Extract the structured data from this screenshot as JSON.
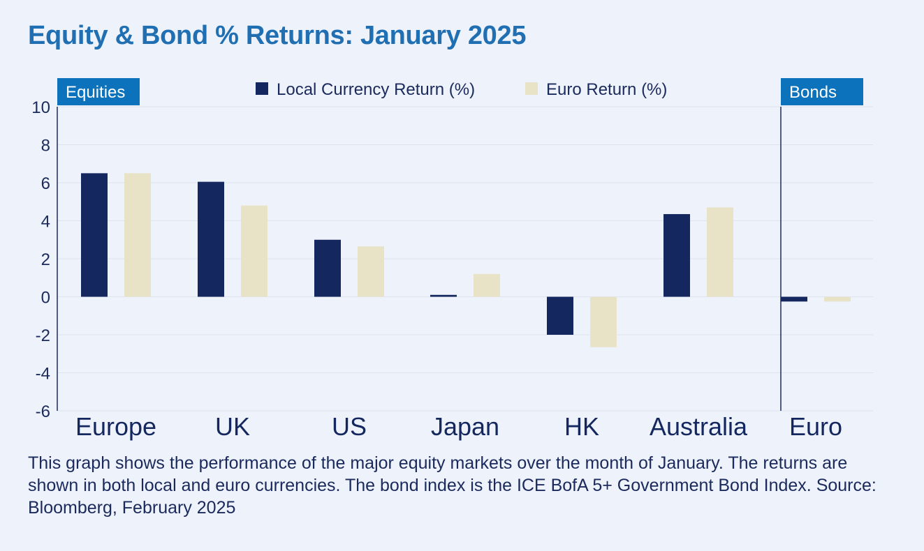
{
  "title": "Equity & Bond % Returns: January 2025",
  "caption": "This graph shows the performance of the major equity markets over the month of January. The returns are shown in both local and euro currencies. The bond index is the ICE BofA 5+ Government Bond Index. Source: Bloomberg, February 2025",
  "colors": {
    "local": "#14275e",
    "euro": "#e8e2c6",
    "accent": "#0b72bb",
    "grid": "#dfe3ee"
  },
  "chart_data": {
    "type": "bar",
    "title": "Equity & Bond % Returns: January 2025",
    "xlabel": "",
    "ylabel": "",
    "ylim": [
      -6,
      10
    ],
    "yticks": [
      "10",
      "8",
      "6",
      "4",
      "2",
      "0",
      "-2",
      "-4",
      "-6"
    ],
    "categories": [
      "Europe",
      "UK",
      "US",
      "Japan",
      "HK",
      "Australia",
      "Euro"
    ],
    "groups": [
      {
        "label": "Equities",
        "categories": [
          "Europe",
          "UK",
          "US",
          "Japan",
          "HK",
          "Australia"
        ]
      },
      {
        "label": "Bonds",
        "categories": [
          "Euro"
        ]
      }
    ],
    "series": [
      {
        "name": "Local Currency Return (%)",
        "values": [
          6.5,
          6.05,
          3.0,
          0.1,
          -2.0,
          4.35,
          -0.25
        ]
      },
      {
        "name": "Euro Return (%)",
        "values": [
          6.5,
          4.8,
          2.65,
          1.2,
          -2.65,
          4.7,
          -0.25
        ]
      }
    ],
    "legend": "top-center",
    "grid": true
  }
}
